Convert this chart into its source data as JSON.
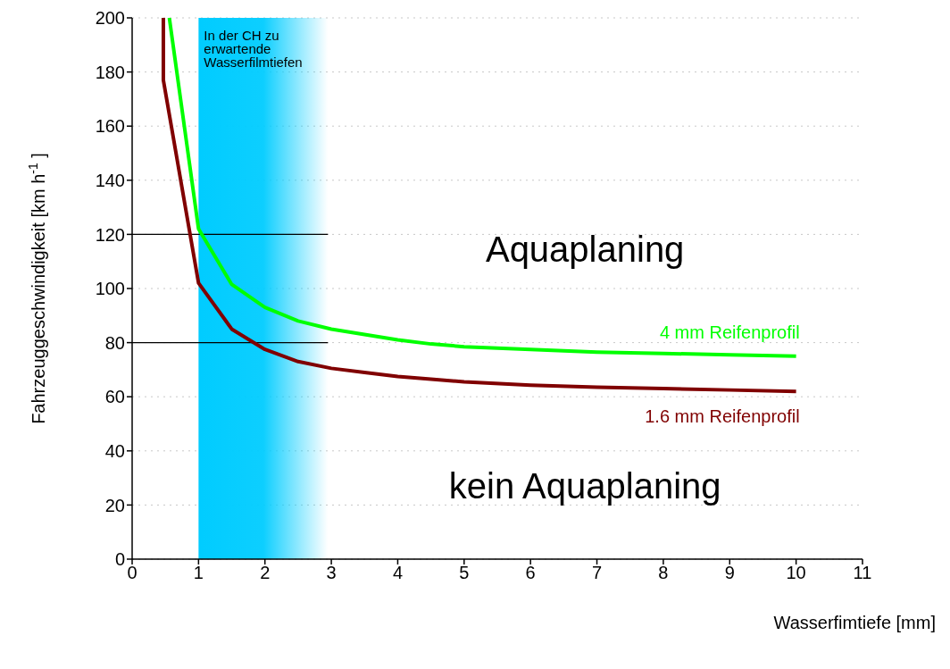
{
  "chart_data": {
    "type": "line",
    "xlabel": "Wasserfimtiefe [mm]",
    "ylabel": "Fahrzeuggeschwindigkeit [km h$^{-1}$]",
    "xlim": [
      0,
      11
    ],
    "xticks": [
      0,
      1,
      2,
      3,
      4,
      5,
      6,
      7,
      8,
      9,
      10,
      11
    ],
    "ylim": [
      0,
      200
    ],
    "yticks": [
      0,
      20,
      40,
      60,
      80,
      100,
      120,
      140,
      160,
      180,
      200
    ],
    "grid": "y",
    "marker": "none",
    "line_style": "solid",
    "series": [
      {
        "name": "4 mm Reifenprofil",
        "color": "#00ff00",
        "x": [
          0.56,
          1,
          1.5,
          2,
          2.5,
          3,
          3.5,
          4,
          4.5,
          5,
          6,
          7,
          8,
          9,
          10
        ],
        "values": [
          200,
          122,
          101.5,
          93,
          88,
          85,
          83,
          81,
          79.5,
          78.5,
          77.5,
          76.5,
          76,
          75.5,
          75
        ]
      },
      {
        "name": "1.6 mm Reifenprofil",
        "color": "#800000",
        "x": [
          0.47,
          0.47,
          1,
          1.5,
          2,
          2.5,
          3,
          3.5,
          4,
          4.5,
          5,
          6,
          7,
          8,
          9,
          10
        ],
        "values": [
          200,
          177,
          102,
          85,
          77.5,
          73,
          70.5,
          69,
          67.5,
          66.5,
          65.5,
          64.3,
          63.5,
          63,
          62.5,
          62
        ]
      }
    ],
    "ref_lines": [
      {
        "axis": "y",
        "value": 120,
        "color": "#000000"
      },
      {
        "axis": "y",
        "value": 80,
        "color": "#000000"
      }
    ],
    "bands": [
      {
        "axis": "x",
        "from": 1,
        "to": 2.95,
        "label": "In der CH zu erwartende Wasserfilmtiefen",
        "color": "#00ccff"
      }
    ],
    "annotations": [
      "Aquaplaning",
      "kein Aquaplaning"
    ]
  }
}
